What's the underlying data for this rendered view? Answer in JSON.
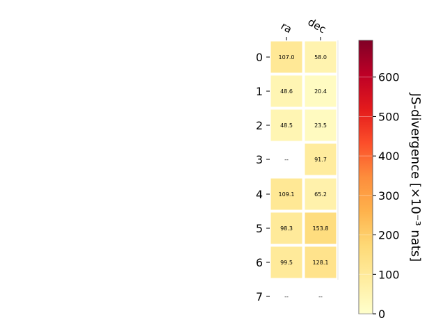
{
  "chart_data": {
    "type": "heatmap",
    "columns": [
      "ra",
      "dec"
    ],
    "rows": [
      "0",
      "1",
      "2",
      "3",
      "4",
      "5",
      "6",
      "7"
    ],
    "values": [
      [
        107.0,
        58.0
      ],
      [
        48.6,
        20.4
      ],
      [
        48.5,
        23.5
      ],
      [
        null,
        91.7
      ],
      [
        109.1,
        65.2
      ],
      [
        98.3,
        153.8
      ],
      [
        99.5,
        128.1
      ],
      [
        null,
        null
      ]
    ],
    "cell_labels": [
      [
        "107.0",
        "58.0"
      ],
      [
        "48.6",
        "20.4"
      ],
      [
        "48.5",
        "23.5"
      ],
      [
        "--",
        "91.7"
      ],
      [
        "109.1",
        "65.2"
      ],
      [
        "98.3",
        "153.8"
      ],
      [
        "99.5",
        "128.1"
      ],
      [
        "--",
        "--"
      ]
    ],
    "colorbar": {
      "label": "JS-divergence [×10⁻³ nats]",
      "ticks": [
        0,
        100,
        200,
        300,
        400,
        500,
        600
      ],
      "range": [
        0,
        693
      ],
      "colormap": "YlOrRd"
    },
    "colors": {
      "scale": [
        "#ffffcc",
        "#ffeda0",
        "#fed976",
        "#feb24c",
        "#fd8d3c",
        "#fc4e2a",
        "#e31a1c",
        "#bd0026",
        "#800026"
      ]
    },
    "grid": false
  }
}
